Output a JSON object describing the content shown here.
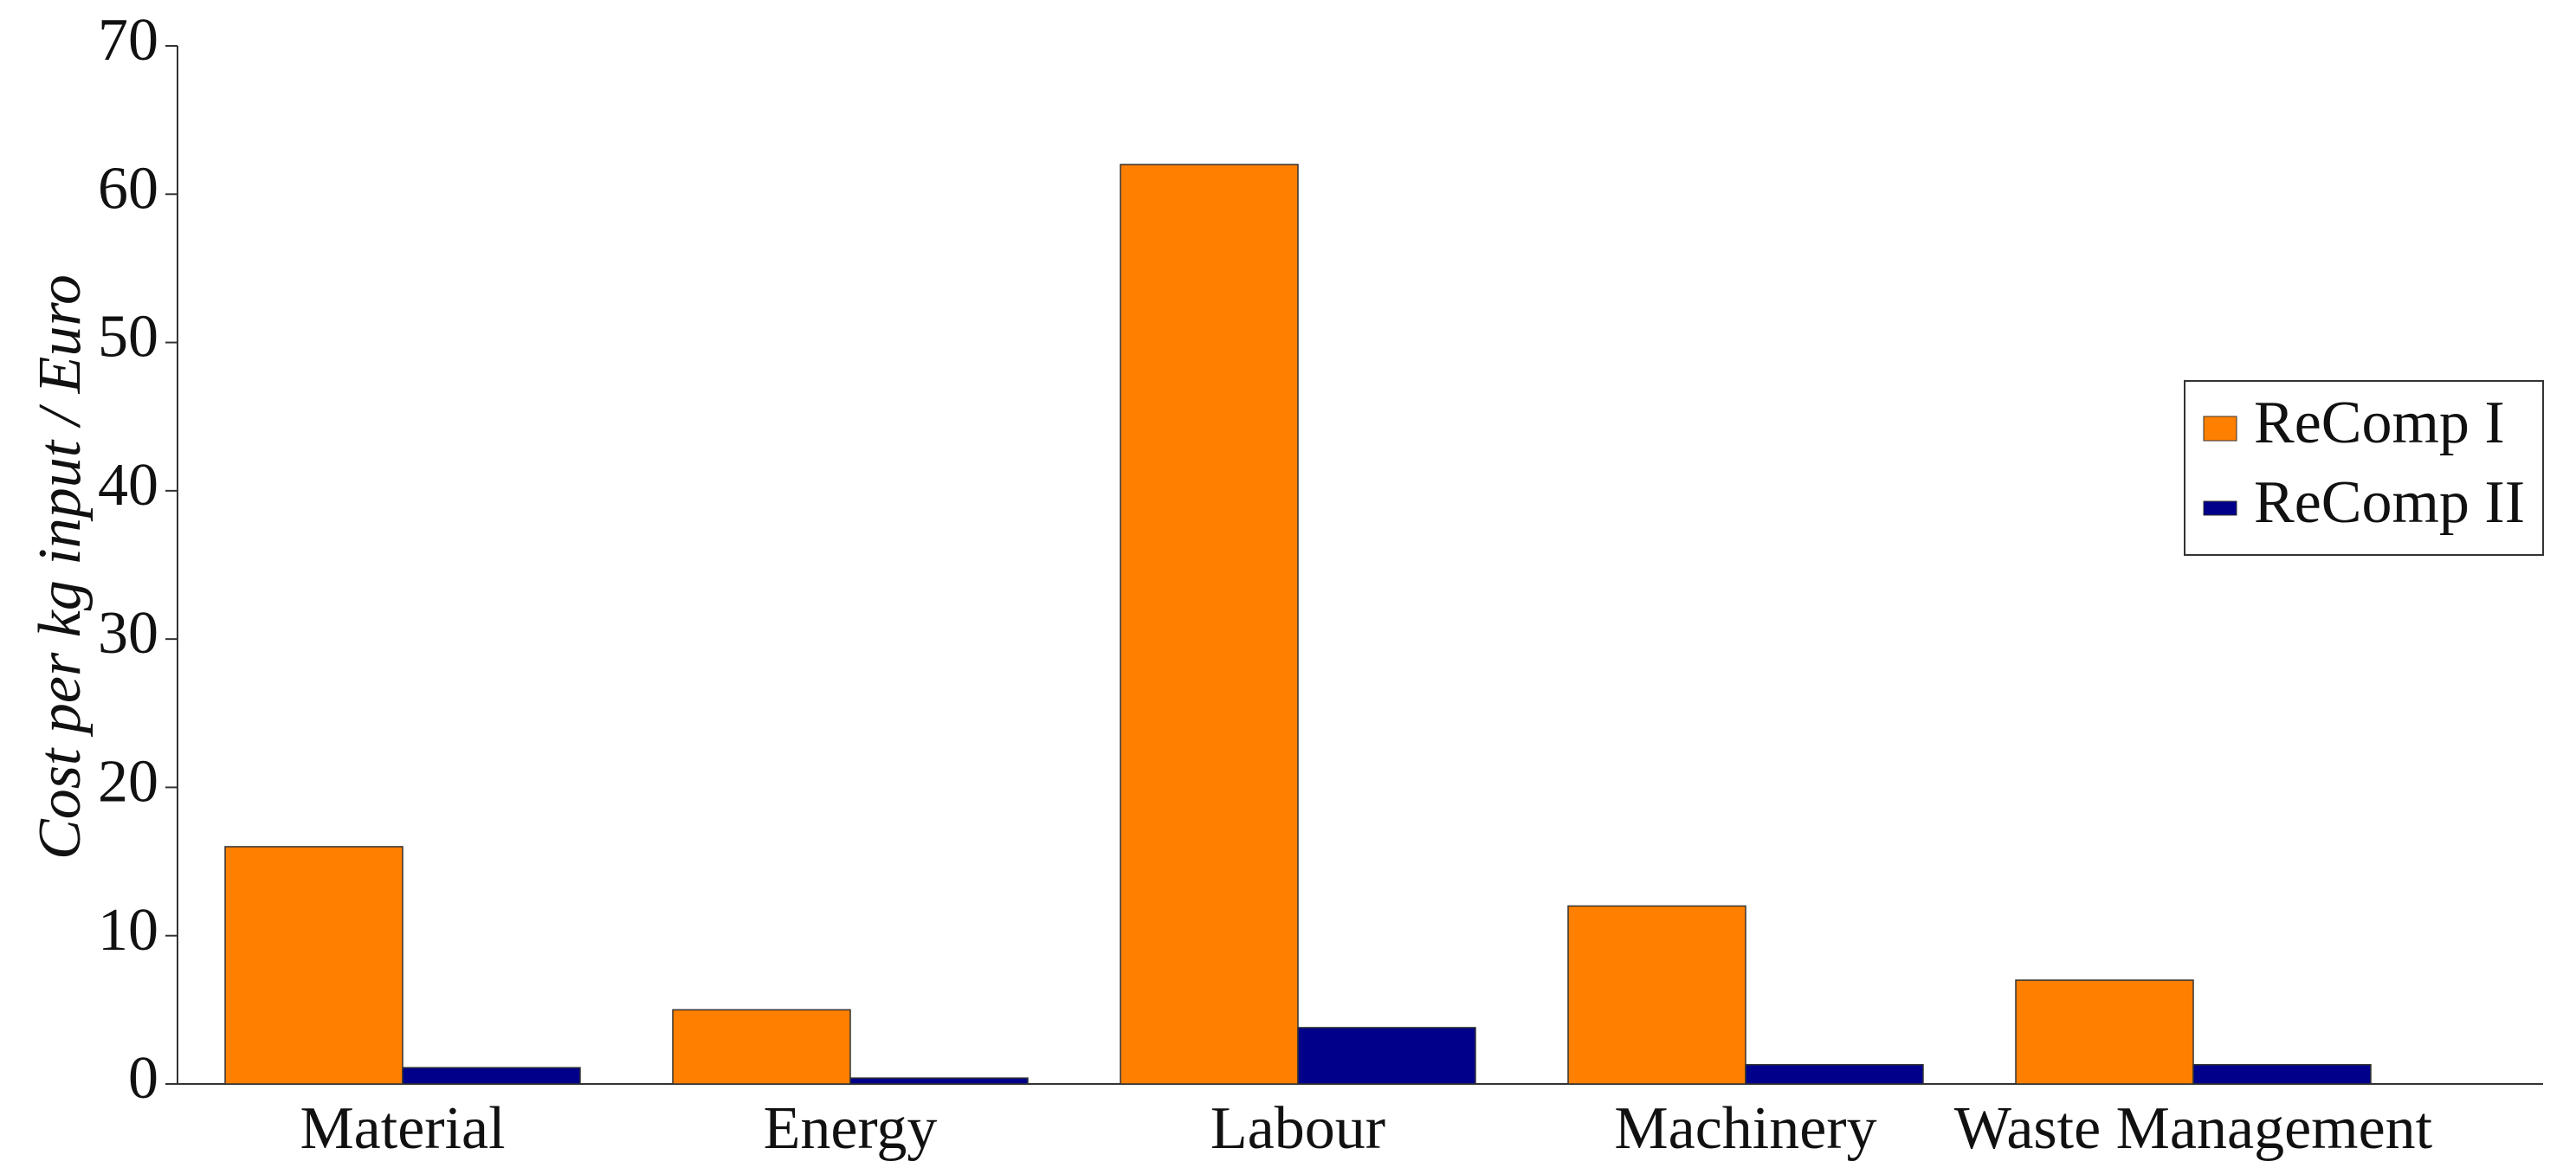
{
  "chart_data": {
    "type": "bar",
    "y_label": "Cost per kg input / Euro",
    "categories": [
      "Material",
      "Energy",
      "Labour",
      "Machinery",
      "Waste Management"
    ],
    "series": [
      {
        "name": "ReComp I",
        "color": "#ff7f00",
        "values": [
          16,
          5,
          62,
          12,
          7
        ]
      },
      {
        "name": "ReComp II",
        "color": "#00008b",
        "values": [
          1.1,
          0.4,
          3.8,
          1.3,
          1.3
        ]
      }
    ],
    "ylim": [
      0,
      70
    ],
    "yticks": [
      0,
      10,
      20,
      30,
      40,
      50,
      60,
      70
    ],
    "legend": "right"
  }
}
